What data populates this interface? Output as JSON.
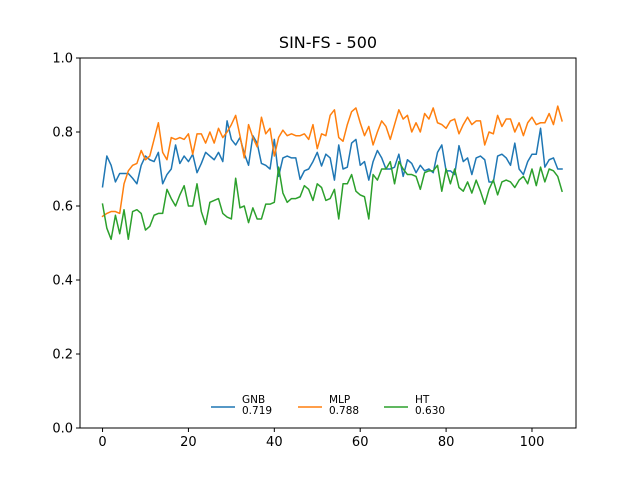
{
  "chart_data": {
    "type": "line",
    "title": "SIN-FS - 500",
    "xlabel": "",
    "ylabel": "",
    "xlim": [
      -5.25,
      110.25
    ],
    "ylim": [
      0.0,
      1.0
    ],
    "xticks": [
      0,
      20,
      40,
      60,
      80,
      100
    ],
    "yticks": [
      0.0,
      0.2,
      0.4,
      0.6,
      0.8,
      1.0
    ],
    "xtick_labels": [
      "0",
      "20",
      "40",
      "60",
      "80",
      "100"
    ],
    "ytick_labels": [
      "0.0",
      "0.2",
      "0.4",
      "0.6",
      "0.8",
      "1.0"
    ],
    "grid": false,
    "legend_position": "lower-center",
    "series": [
      {
        "name": "GNB",
        "mean_label": "0.719",
        "color": "#1f77b4",
        "values": [
          0.652,
          0.735,
          0.71,
          0.665,
          0.688,
          0.688,
          0.688,
          0.675,
          0.66,
          0.71,
          0.735,
          0.725,
          0.72,
          0.745,
          0.66,
          0.685,
          0.7,
          0.765,
          0.715,
          0.735,
          0.72,
          0.74,
          0.69,
          0.715,
          0.745,
          0.735,
          0.725,
          0.745,
          0.72,
          0.83,
          0.78,
          0.765,
          0.785,
          0.742,
          0.71,
          0.79,
          0.77,
          0.715,
          0.71,
          0.7,
          0.78,
          0.68,
          0.73,
          0.735,
          0.73,
          0.73,
          0.672,
          0.695,
          0.7,
          0.72,
          0.745,
          0.708,
          0.74,
          0.73,
          0.67,
          0.765,
          0.7,
          0.705,
          0.77,
          0.78,
          0.71,
          0.72,
          0.67,
          0.72,
          0.75,
          0.73,
          0.7,
          0.7,
          0.705,
          0.74,
          0.68,
          0.725,
          0.715,
          0.69,
          0.71,
          0.695,
          0.7,
          0.69,
          0.745,
          0.765,
          0.695,
          0.695,
          0.685,
          0.763,
          0.72,
          0.73,
          0.685,
          0.73,
          0.735,
          0.725,
          0.665,
          0.665,
          0.735,
          0.74,
          0.73,
          0.71,
          0.77,
          0.7,
          0.685,
          0.72,
          0.74,
          0.74,
          0.81,
          0.705,
          0.725,
          0.73,
          0.7,
          0.7
        ]
      },
      {
        "name": "MLP",
        "mean_label": "0.788",
        "color": "#ff7f0e",
        "values": [
          0.572,
          0.58,
          0.585,
          0.585,
          0.58,
          0.66,
          0.695,
          0.71,
          0.715,
          0.75,
          0.725,
          0.735,
          0.78,
          0.825,
          0.745,
          0.725,
          0.785,
          0.78,
          0.785,
          0.78,
          0.795,
          0.74,
          0.795,
          0.795,
          0.77,
          0.8,
          0.77,
          0.81,
          0.785,
          0.8,
          0.82,
          0.845,
          0.79,
          0.73,
          0.82,
          0.785,
          0.76,
          0.84,
          0.795,
          0.81,
          0.735,
          0.785,
          0.805,
          0.79,
          0.795,
          0.79,
          0.79,
          0.795,
          0.78,
          0.82,
          0.755,
          0.795,
          0.79,
          0.845,
          0.86,
          0.785,
          0.775,
          0.82,
          0.855,
          0.865,
          0.825,
          0.79,
          0.815,
          0.765,
          0.8,
          0.83,
          0.815,
          0.78,
          0.82,
          0.86,
          0.835,
          0.845,
          0.8,
          0.825,
          0.8,
          0.85,
          0.835,
          0.865,
          0.825,
          0.82,
          0.81,
          0.83,
          0.835,
          0.795,
          0.82,
          0.84,
          0.82,
          0.83,
          0.83,
          0.765,
          0.8,
          0.795,
          0.845,
          0.815,
          0.835,
          0.835,
          0.8,
          0.825,
          0.79,
          0.825,
          0.84,
          0.82,
          0.825,
          0.825,
          0.85,
          0.82,
          0.87,
          0.83
        ]
      },
      {
        "name": "HT",
        "mean_label": "0.630",
        "color": "#2ca02c",
        "values": [
          0.605,
          0.54,
          0.51,
          0.575,
          0.525,
          0.59,
          0.51,
          0.585,
          0.59,
          0.58,
          0.535,
          0.545,
          0.575,
          0.58,
          0.58,
          0.645,
          0.62,
          0.6,
          0.63,
          0.655,
          0.6,
          0.6,
          0.66,
          0.585,
          0.55,
          0.61,
          0.615,
          0.62,
          0.58,
          0.57,
          0.565,
          0.675,
          0.595,
          0.6,
          0.555,
          0.595,
          0.565,
          0.565,
          0.605,
          0.605,
          0.61,
          0.705,
          0.635,
          0.61,
          0.62,
          0.62,
          0.625,
          0.655,
          0.645,
          0.615,
          0.66,
          0.65,
          0.615,
          0.62,
          0.645,
          0.565,
          0.66,
          0.66,
          0.685,
          0.64,
          0.63,
          0.625,
          0.565,
          0.685,
          0.67,
          0.7,
          0.7,
          0.72,
          0.66,
          0.72,
          0.7,
          0.685,
          0.685,
          0.68,
          0.645,
          0.69,
          0.695,
          0.695,
          0.71,
          0.64,
          0.7,
          0.66,
          0.7,
          0.65,
          0.64,
          0.665,
          0.635,
          0.67,
          0.64,
          0.605,
          0.645,
          0.67,
          0.63,
          0.665,
          0.67,
          0.665,
          0.65,
          0.67,
          0.68,
          0.66,
          0.7,
          0.655,
          0.705,
          0.665,
          0.7,
          0.695,
          0.68,
          0.64
        ]
      }
    ]
  }
}
